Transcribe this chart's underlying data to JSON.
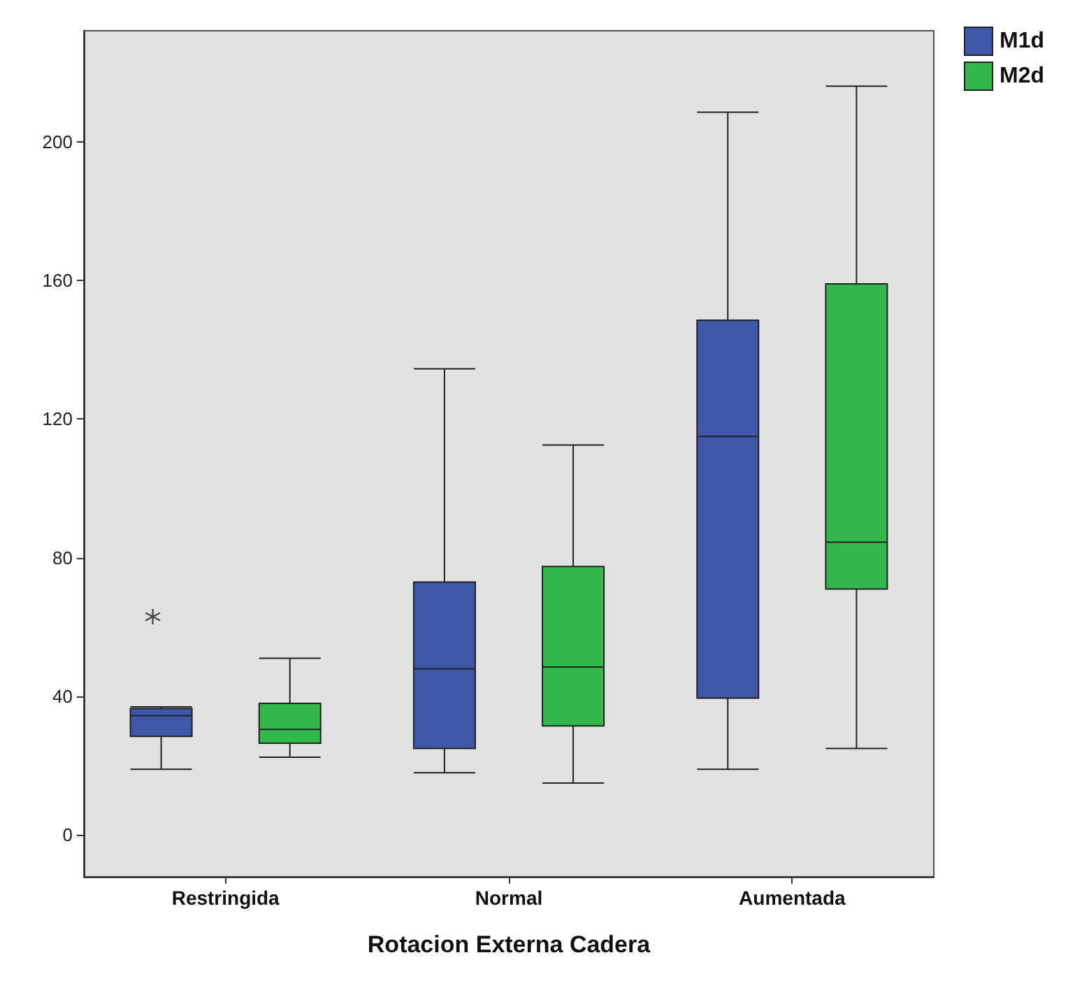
{
  "chart_data": {
    "type": "box",
    "xlabel": "Rotacion Externa Cadera",
    "categories": [
      "Restringida",
      "Normal",
      "Aumentada"
    ],
    "series": [
      {
        "name": "M1d",
        "color": "#3f57a8",
        "boxes": [
          {
            "low": 19,
            "q1": 28.5,
            "median": 34.5,
            "q3": 36.5,
            "high": 37,
            "outliers": [
              63
            ]
          },
          {
            "low": 18,
            "q1": 25,
            "median": 48,
            "q3": 73,
            "high": 134.5
          },
          {
            "low": 19,
            "q1": 39.5,
            "median": 115,
            "q3": 148.5,
            "high": 208.5
          }
        ]
      },
      {
        "name": "M2d",
        "color": "#32b84a",
        "boxes": [
          {
            "low": 22.5,
            "q1": 26.5,
            "median": 30.5,
            "q3": 38,
            "high": 51
          },
          {
            "low": 15,
            "q1": 31.5,
            "median": 48.5,
            "q3": 77.5,
            "high": 112.5
          },
          {
            "low": 25,
            "q1": 71,
            "median": 84.5,
            "q3": 159,
            "high": 216
          }
        ]
      }
    ],
    "ylim": [
      -12,
      232
    ],
    "yticks": [
      0,
      40,
      80,
      120,
      160,
      200
    ],
    "grid": false,
    "legend": "top right"
  }
}
